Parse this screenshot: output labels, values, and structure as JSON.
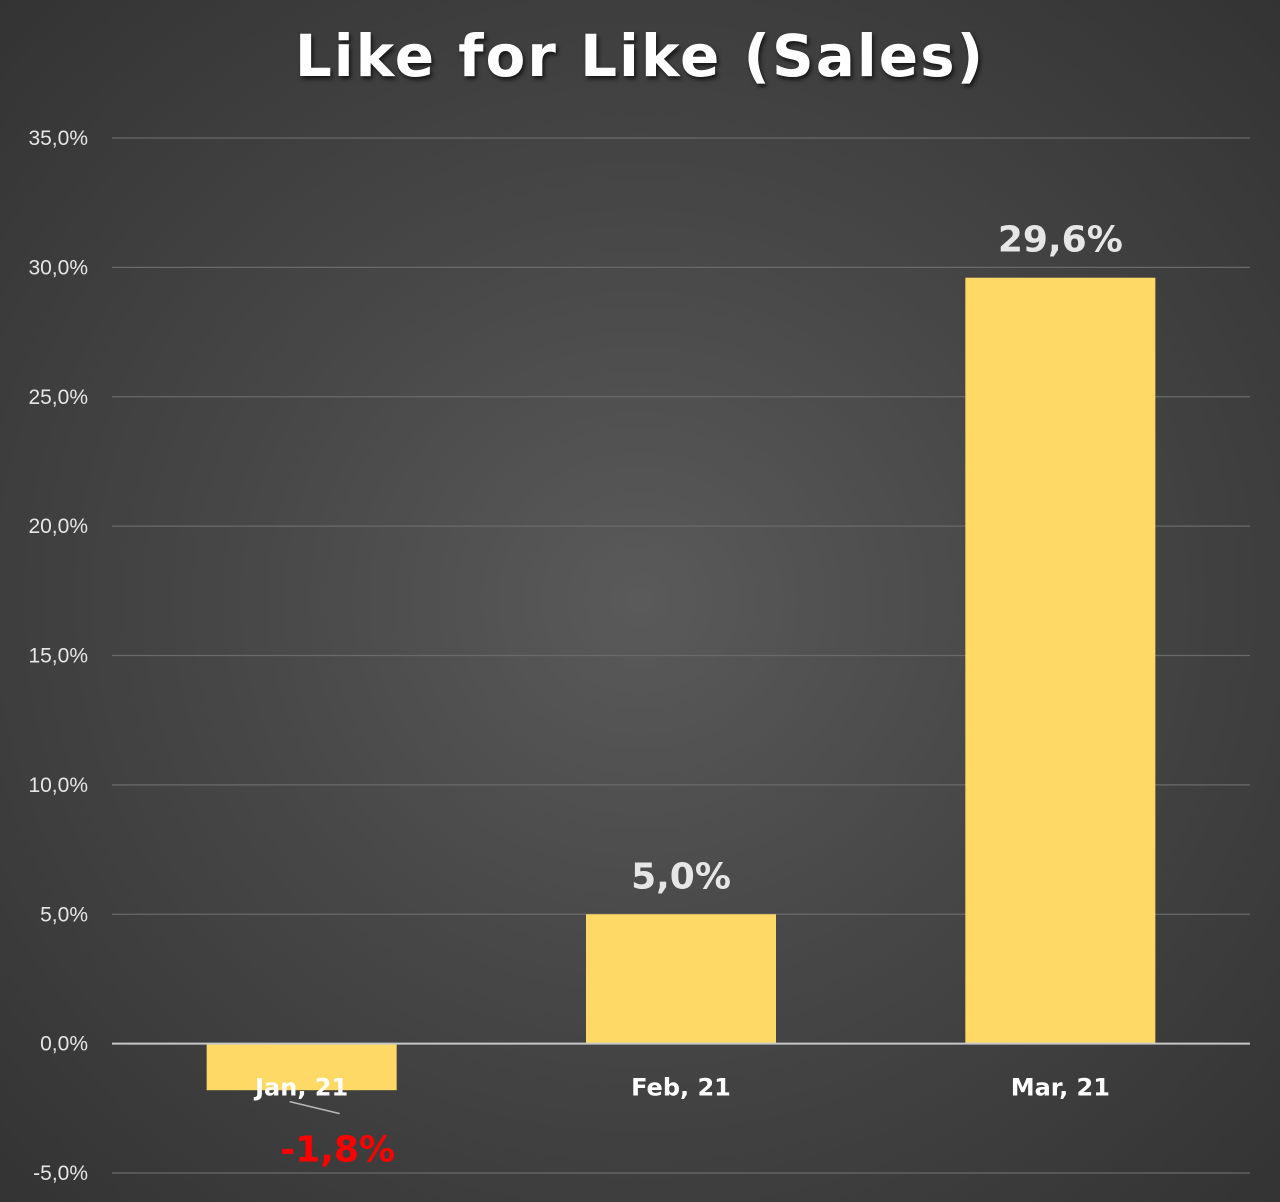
{
  "chart_data": {
    "type": "bar",
    "title": "Like for Like (Sales)",
    "categories": [
      "Jan, 21",
      "Feb, 21",
      "Mar, 21"
    ],
    "values": [
      -1.8,
      5.0,
      29.6
    ],
    "data_labels": [
      "-1,8%",
      "5,0%",
      "29,6%"
    ],
    "ylim": [
      -5,
      35
    ],
    "yticks": [
      -5,
      0,
      5,
      10,
      15,
      20,
      25,
      30,
      35
    ],
    "ytick_labels": [
      "-5,0%",
      "0,0%",
      "5,0%",
      "10,0%",
      "15,0%",
      "20,0%",
      "25,0%",
      "30,0%",
      "35,0%"
    ],
    "xlabel": "",
    "ylabel": "",
    "grid": true,
    "legend": "none",
    "colors": {
      "bar": "#FFD966",
      "positive_label": "#E6E6E6",
      "negative_label": "#FF0000",
      "gridline": "#6a6a6a",
      "zero_line": "#c8c8c8"
    }
  }
}
